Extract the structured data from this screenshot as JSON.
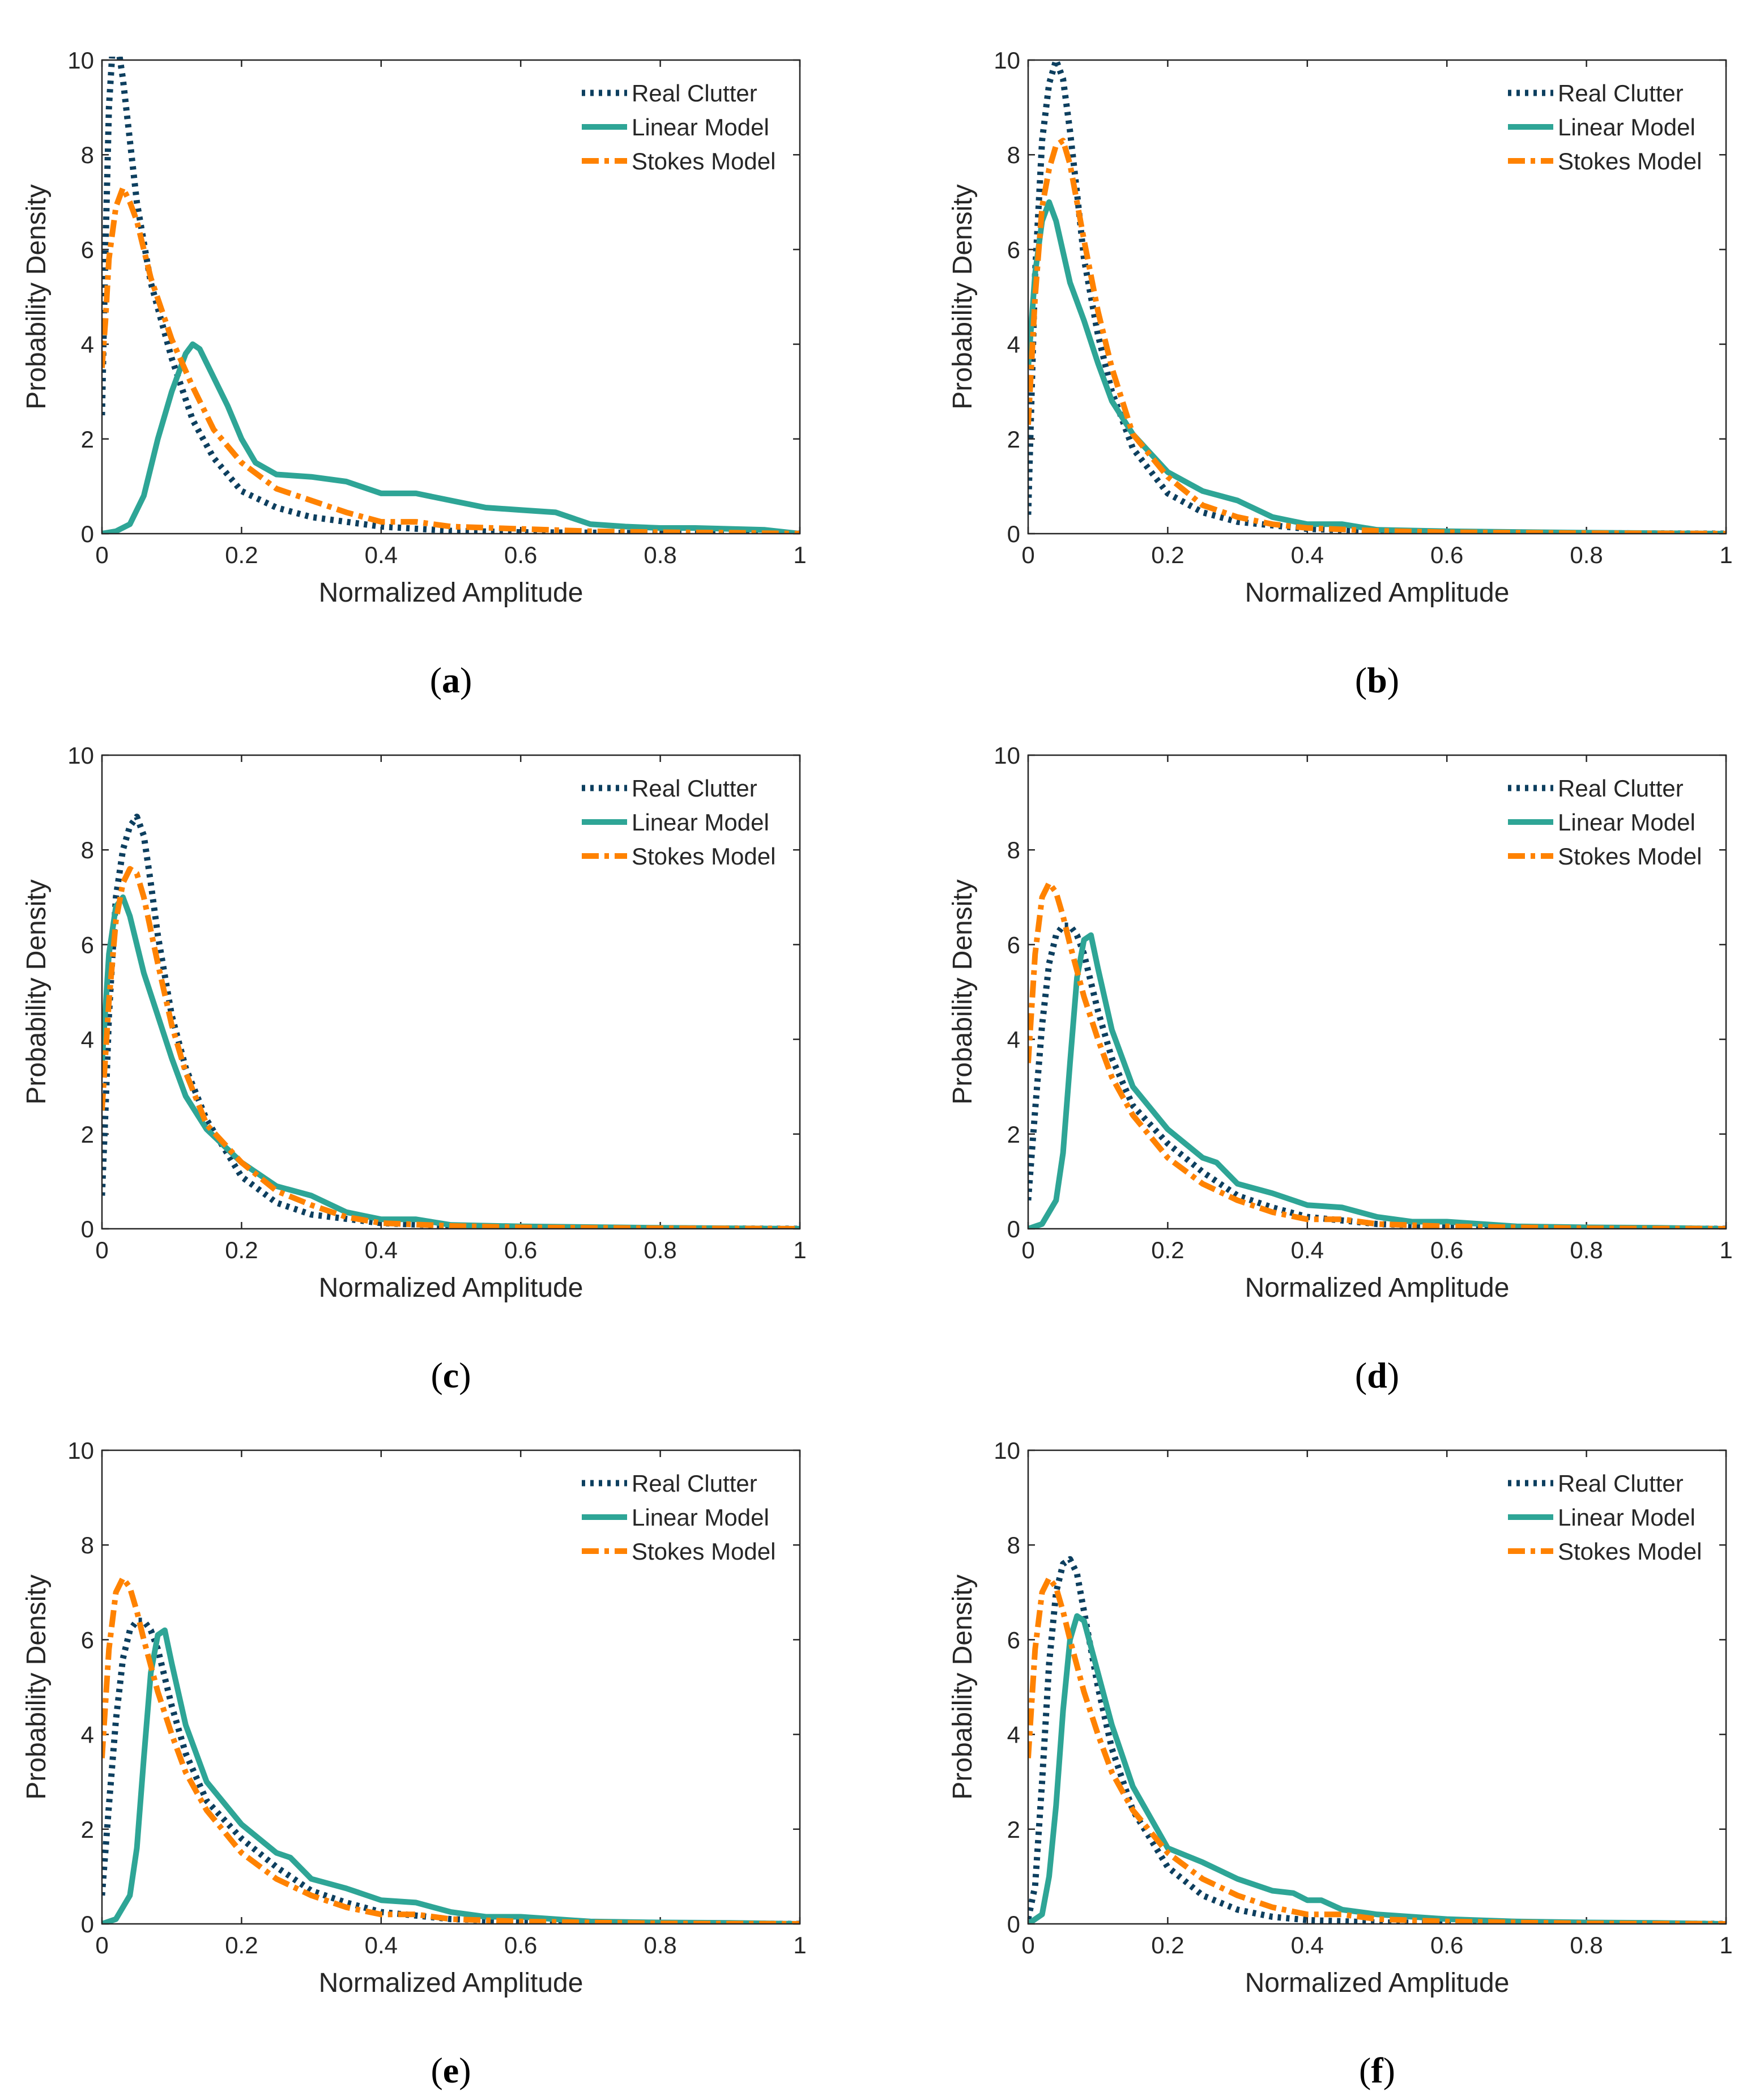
{
  "figure": {
    "series_colors": {
      "Real Clutter": "#0d3f5f",
      "Linear Model": "#2ea596",
      "Stokes Model": "#ff8200"
    }
  },
  "chart_data": [
    {
      "panel": "a",
      "type": "line",
      "xlabel": "Normalized Amplitude",
      "ylabel": "Probability Density",
      "xlim": [
        0,
        1
      ],
      "ylim": [
        0,
        10
      ],
      "xticks": [
        "0",
        "0.2",
        "0.4",
        "0.6",
        "0.8",
        "1"
      ],
      "yticks": [
        "0",
        "2",
        "4",
        "6",
        "8",
        "10"
      ],
      "legend": [
        "Real Clutter",
        "Linear Model",
        "Stokes Model"
      ],
      "series": [
        {
          "name": "Real Clutter",
          "style": "dotted",
          "x": [
            0,
            0.005,
            0.01,
            0.015,
            0.02,
            0.025,
            0.03,
            0.04,
            0.05,
            0.07,
            0.1,
            0.13,
            0.16,
            0.2,
            0.25,
            0.3,
            0.4,
            0.5,
            0.6,
            0.7,
            0.8,
            0.9,
            1.0
          ],
          "y": [
            2.5,
            6,
            9,
            10.2,
            10.4,
            10.1,
            9.6,
            8.3,
            7,
            5.3,
            3.7,
            2.4,
            1.6,
            0.9,
            0.55,
            0.35,
            0.15,
            0.06,
            0.03,
            0.02,
            0.01,
            0.01,
            0
          ]
        },
        {
          "name": "Linear Model",
          "style": "solid",
          "x": [
            0,
            0.02,
            0.04,
            0.06,
            0.08,
            0.1,
            0.12,
            0.13,
            0.14,
            0.16,
            0.18,
            0.2,
            0.22,
            0.25,
            0.3,
            0.35,
            0.4,
            0.45,
            0.5,
            0.55,
            0.6,
            0.65,
            0.7,
            0.75,
            0.8,
            0.85,
            0.9,
            0.95,
            1.0
          ],
          "y": [
            0,
            0.05,
            0.2,
            0.8,
            2.0,
            3.0,
            3.8,
            4.0,
            3.9,
            3.3,
            2.7,
            2.0,
            1.5,
            1.25,
            1.2,
            1.1,
            0.85,
            0.85,
            0.7,
            0.55,
            0.5,
            0.45,
            0.2,
            0.15,
            0.12,
            0.12,
            0.1,
            0.08,
            0
          ]
        },
        {
          "name": "Stokes Model",
          "style": "dashdot",
          "x": [
            0,
            0.005,
            0.01,
            0.02,
            0.03,
            0.04,
            0.05,
            0.07,
            0.1,
            0.13,
            0.16,
            0.2,
            0.25,
            0.3,
            0.35,
            0.4,
            0.45,
            0.5,
            0.6,
            0.7,
            0.8,
            0.9,
            1.0
          ],
          "y": [
            3.5,
            4.5,
            5.8,
            6.9,
            7.3,
            7.0,
            6.6,
            5.4,
            4.1,
            3.1,
            2.2,
            1.5,
            0.95,
            0.7,
            0.45,
            0.25,
            0.25,
            0.15,
            0.1,
            0.05,
            0.03,
            0.02,
            0
          ]
        }
      ]
    },
    {
      "panel": "b",
      "type": "line",
      "xlabel": "Normalized Amplitude",
      "ylabel": "Probability Density",
      "xlim": [
        0,
        1
      ],
      "ylim": [
        0,
        10
      ],
      "xticks": [
        "0",
        "0.2",
        "0.4",
        "0.6",
        "0.8",
        "1"
      ],
      "yticks": [
        "0",
        "2",
        "4",
        "6",
        "8",
        "10"
      ],
      "legend": [
        "Real Clutter",
        "Linear Model",
        "Stokes Model"
      ],
      "series": [
        {
          "name": "Real Clutter",
          "style": "dotted",
          "x": [
            0,
            0.005,
            0.01,
            0.02,
            0.03,
            0.04,
            0.05,
            0.06,
            0.07,
            0.08,
            0.1,
            0.12,
            0.15,
            0.2,
            0.25,
            0.3,
            0.4,
            0.5,
            0.6,
            0.8,
            1.0
          ],
          "y": [
            0.4,
            3,
            5.5,
            8.3,
            9.5,
            10,
            9.6,
            8.5,
            7.2,
            5.8,
            4.2,
            3.0,
            1.8,
            0.85,
            0.45,
            0.25,
            0.1,
            0.05,
            0.03,
            0.01,
            0
          ]
        },
        {
          "name": "Linear Model",
          "style": "solid",
          "x": [
            0,
            0.01,
            0.02,
            0.03,
            0.04,
            0.06,
            0.08,
            0.1,
            0.12,
            0.15,
            0.2,
            0.25,
            0.3,
            0.35,
            0.4,
            0.45,
            0.5,
            0.6,
            0.8,
            1.0
          ],
          "y": [
            3.5,
            5.5,
            6.6,
            7.0,
            6.6,
            5.3,
            4.5,
            3.6,
            2.8,
            2.1,
            1.3,
            0.9,
            0.7,
            0.35,
            0.2,
            0.2,
            0.08,
            0.05,
            0.02,
            0
          ]
        },
        {
          "name": "Stokes Model",
          "style": "dashdot",
          "x": [
            0,
            0.01,
            0.02,
            0.03,
            0.04,
            0.05,
            0.06,
            0.08,
            0.1,
            0.12,
            0.15,
            0.2,
            0.25,
            0.3,
            0.35,
            0.4,
            0.5,
            0.6,
            0.8,
            1.0
          ],
          "y": [
            2.3,
            5,
            6.9,
            7.7,
            8.2,
            8.3,
            7.8,
            6.2,
            4.7,
            3.5,
            2.1,
            1.2,
            0.6,
            0.35,
            0.2,
            0.12,
            0.06,
            0.03,
            0.01,
            0
          ]
        }
      ]
    },
    {
      "panel": "c",
      "type": "line",
      "xlabel": "Normalized Amplitude",
      "ylabel": "Probability Density",
      "xlim": [
        0,
        1
      ],
      "ylim": [
        0,
        10
      ],
      "xticks": [
        "0",
        "0.2",
        "0.4",
        "0.6",
        "0.8",
        "1"
      ],
      "yticks": [
        "0",
        "2",
        "4",
        "6",
        "8",
        "10"
      ],
      "legend": [
        "Real Clutter",
        "Linear Model",
        "Stokes Model"
      ],
      "series": [
        {
          "name": "Real Clutter",
          "style": "dotted",
          "x": [
            0,
            0.005,
            0.01,
            0.02,
            0.03,
            0.04,
            0.05,
            0.06,
            0.07,
            0.08,
            0.1,
            0.12,
            0.15,
            0.2,
            0.25,
            0.3,
            0.4,
            0.5,
            0.6,
            0.8,
            1.0
          ],
          "y": [
            0.7,
            2.5,
            4.5,
            7.0,
            8.0,
            8.5,
            8.7,
            8.3,
            7.3,
            6.2,
            4.5,
            3.4,
            2.3,
            1.1,
            0.55,
            0.3,
            0.12,
            0.06,
            0.03,
            0.01,
            0
          ]
        },
        {
          "name": "Linear Model",
          "style": "solid",
          "x": [
            0,
            0.01,
            0.02,
            0.03,
            0.04,
            0.06,
            0.08,
            0.1,
            0.12,
            0.15,
            0.2,
            0.25,
            0.3,
            0.35,
            0.4,
            0.45,
            0.5,
            0.6,
            0.8,
            1.0
          ],
          "y": [
            3.5,
            5.8,
            6.8,
            7.0,
            6.6,
            5.4,
            4.5,
            3.6,
            2.8,
            2.1,
            1.4,
            0.9,
            0.7,
            0.35,
            0.2,
            0.2,
            0.08,
            0.05,
            0.02,
            0
          ]
        },
        {
          "name": "Stokes Model",
          "style": "dashdot",
          "x": [
            0,
            0.01,
            0.02,
            0.03,
            0.04,
            0.05,
            0.06,
            0.08,
            0.1,
            0.12,
            0.15,
            0.2,
            0.25,
            0.3,
            0.35,
            0.4,
            0.5,
            0.6,
            0.8,
            1.0
          ],
          "y": [
            2.5,
            4.8,
            6.5,
            7.3,
            7.6,
            7.5,
            7.0,
            5.6,
            4.3,
            3.3,
            2.2,
            1.4,
            0.8,
            0.5,
            0.25,
            0.12,
            0.06,
            0.03,
            0.01,
            0
          ]
        }
      ]
    },
    {
      "panel": "d",
      "type": "line",
      "xlabel": "Normalized Amplitude",
      "ylabel": "Probability Density",
      "xlim": [
        0,
        1
      ],
      "ylim": [
        0,
        10
      ],
      "xticks": [
        "0",
        "0.2",
        "0.4",
        "0.6",
        "0.8",
        "1"
      ],
      "yticks": [
        "0",
        "2",
        "4",
        "6",
        "8",
        "10"
      ],
      "legend": [
        "Real Clutter",
        "Linear Model",
        "Stokes Model"
      ],
      "series": [
        {
          "name": "Real Clutter",
          "style": "dotted",
          "x": [
            0,
            0.01,
            0.02,
            0.03,
            0.04,
            0.05,
            0.06,
            0.07,
            0.08,
            0.1,
            0.12,
            0.15,
            0.2,
            0.25,
            0.3,
            0.35,
            0.4,
            0.5,
            0.6,
            0.8,
            1.0
          ],
          "y": [
            0.6,
            2.5,
            4.3,
            5.6,
            6.2,
            6.4,
            6.4,
            6.2,
            5.8,
            4.6,
            3.6,
            2.6,
            1.8,
            1.2,
            0.7,
            0.45,
            0.25,
            0.1,
            0.05,
            0.01,
            0
          ]
        },
        {
          "name": "Linear Model",
          "style": "solid",
          "x": [
            0,
            0.02,
            0.04,
            0.05,
            0.06,
            0.07,
            0.08,
            0.09,
            0.1,
            0.12,
            0.15,
            0.2,
            0.25,
            0.27,
            0.3,
            0.35,
            0.4,
            0.45,
            0.5,
            0.55,
            0.6,
            0.7,
            0.8,
            0.9,
            1.0
          ],
          "y": [
            0,
            0.1,
            0.6,
            1.6,
            3.5,
            5.3,
            6.1,
            6.2,
            5.5,
            4.2,
            3.0,
            2.1,
            1.5,
            1.4,
            0.95,
            0.75,
            0.5,
            0.45,
            0.25,
            0.15,
            0.15,
            0.05,
            0.03,
            0.02,
            0
          ]
        },
        {
          "name": "Stokes Model",
          "style": "dashdot",
          "x": [
            0,
            0.01,
            0.02,
            0.03,
            0.04,
            0.05,
            0.06,
            0.08,
            0.1,
            0.12,
            0.15,
            0.2,
            0.25,
            0.3,
            0.35,
            0.4,
            0.45,
            0.5,
            0.6,
            0.8,
            1.0
          ],
          "y": [
            3.5,
            5.8,
            7.0,
            7.3,
            7.1,
            6.6,
            6.0,
            4.9,
            4.0,
            3.2,
            2.4,
            1.5,
            0.95,
            0.6,
            0.35,
            0.2,
            0.2,
            0.1,
            0.05,
            0.01,
            0
          ]
        }
      ]
    },
    {
      "panel": "e",
      "type": "line",
      "xlabel": "Normalized Amplitude",
      "ylabel": "Probability Density",
      "xlim": [
        0,
        1
      ],
      "ylim": [
        0,
        10
      ],
      "xticks": [
        "0",
        "0.2",
        "0.4",
        "0.6",
        "0.8",
        "1"
      ],
      "yticks": [
        "0",
        "2",
        "4",
        "6",
        "8",
        "10"
      ],
      "legend": [
        "Real Clutter",
        "Linear Model",
        "Stokes Model"
      ],
      "series": [
        {
          "name": "Real Clutter",
          "style": "dotted",
          "x": [
            0,
            0.01,
            0.02,
            0.03,
            0.04,
            0.05,
            0.06,
            0.07,
            0.08,
            0.1,
            0.12,
            0.15,
            0.2,
            0.25,
            0.3,
            0.35,
            0.4,
            0.5,
            0.6,
            0.8,
            1.0
          ],
          "y": [
            0.6,
            2.5,
            4.3,
            5.6,
            6.2,
            6.4,
            6.4,
            6.2,
            5.8,
            4.6,
            3.6,
            2.6,
            1.8,
            1.2,
            0.7,
            0.45,
            0.25,
            0.1,
            0.05,
            0.01,
            0
          ]
        },
        {
          "name": "Linear Model",
          "style": "solid",
          "x": [
            0,
            0.02,
            0.04,
            0.05,
            0.06,
            0.07,
            0.08,
            0.09,
            0.1,
            0.12,
            0.15,
            0.2,
            0.25,
            0.27,
            0.3,
            0.35,
            0.4,
            0.45,
            0.5,
            0.55,
            0.6,
            0.7,
            0.8,
            0.9,
            1.0
          ],
          "y": [
            0,
            0.1,
            0.6,
            1.6,
            3.5,
            5.3,
            6.1,
            6.2,
            5.5,
            4.2,
            3.0,
            2.1,
            1.5,
            1.4,
            0.95,
            0.75,
            0.5,
            0.45,
            0.25,
            0.15,
            0.15,
            0.05,
            0.03,
            0.02,
            0
          ]
        },
        {
          "name": "Stokes Model",
          "style": "dashdot",
          "x": [
            0,
            0.01,
            0.02,
            0.03,
            0.04,
            0.05,
            0.06,
            0.08,
            0.1,
            0.12,
            0.15,
            0.2,
            0.25,
            0.3,
            0.35,
            0.4,
            0.45,
            0.5,
            0.6,
            0.8,
            1.0
          ],
          "y": [
            3.5,
            5.8,
            7.0,
            7.3,
            7.1,
            6.6,
            6.0,
            4.9,
            4.0,
            3.2,
            2.4,
            1.5,
            0.95,
            0.6,
            0.35,
            0.2,
            0.2,
            0.1,
            0.05,
            0.01,
            0
          ]
        }
      ]
    },
    {
      "panel": "f",
      "type": "line",
      "xlabel": "Normalized Amplitude",
      "ylabel": "Probability Density",
      "xlim": [
        0,
        1
      ],
      "ylim": [
        0,
        10
      ],
      "xticks": [
        "0",
        "0.2",
        "0.4",
        "0.6",
        "0.8",
        "1"
      ],
      "yticks": [
        "0",
        "2",
        "4",
        "6",
        "8",
        "10"
      ],
      "legend": [
        "Real Clutter",
        "Linear Model",
        "Stokes Model"
      ],
      "series": [
        {
          "name": "Real Clutter",
          "style": "dotted",
          "x": [
            0,
            0.01,
            0.02,
            0.03,
            0.04,
            0.05,
            0.06,
            0.07,
            0.08,
            0.1,
            0.12,
            0.15,
            0.2,
            0.25,
            0.3,
            0.35,
            0.4,
            0.5,
            0.6,
            0.8,
            1.0
          ],
          "y": [
            0.1,
            0.8,
            3.0,
            5.5,
            7.0,
            7.6,
            7.7,
            7.4,
            6.6,
            5.0,
            3.7,
            2.4,
            1.2,
            0.6,
            0.3,
            0.15,
            0.08,
            0.03,
            0.02,
            0.01,
            0
          ]
        },
        {
          "name": "Linear Model",
          "style": "solid",
          "x": [
            0,
            0.02,
            0.03,
            0.04,
            0.05,
            0.06,
            0.07,
            0.08,
            0.1,
            0.12,
            0.15,
            0.2,
            0.25,
            0.3,
            0.35,
            0.38,
            0.4,
            0.42,
            0.45,
            0.5,
            0.6,
            0.7,
            0.8,
            0.9,
            1.0
          ],
          "y": [
            0,
            0.2,
            1.0,
            2.5,
            4.5,
            6.0,
            6.5,
            6.4,
            5.3,
            4.2,
            2.9,
            1.6,
            1.3,
            0.95,
            0.7,
            0.65,
            0.5,
            0.5,
            0.3,
            0.2,
            0.1,
            0.05,
            0.03,
            0.02,
            0
          ]
        },
        {
          "name": "Stokes Model",
          "style": "dashdot",
          "x": [
            0,
            0.01,
            0.02,
            0.03,
            0.04,
            0.05,
            0.06,
            0.08,
            0.1,
            0.12,
            0.15,
            0.2,
            0.25,
            0.3,
            0.35,
            0.4,
            0.45,
            0.5,
            0.6,
            0.8,
            1.0
          ],
          "y": [
            3.5,
            5.8,
            7.0,
            7.3,
            7.1,
            6.6,
            6.0,
            4.9,
            4.0,
            3.2,
            2.4,
            1.5,
            0.95,
            0.6,
            0.35,
            0.2,
            0.2,
            0.1,
            0.05,
            0.01,
            0
          ]
        }
      ]
    }
  ]
}
